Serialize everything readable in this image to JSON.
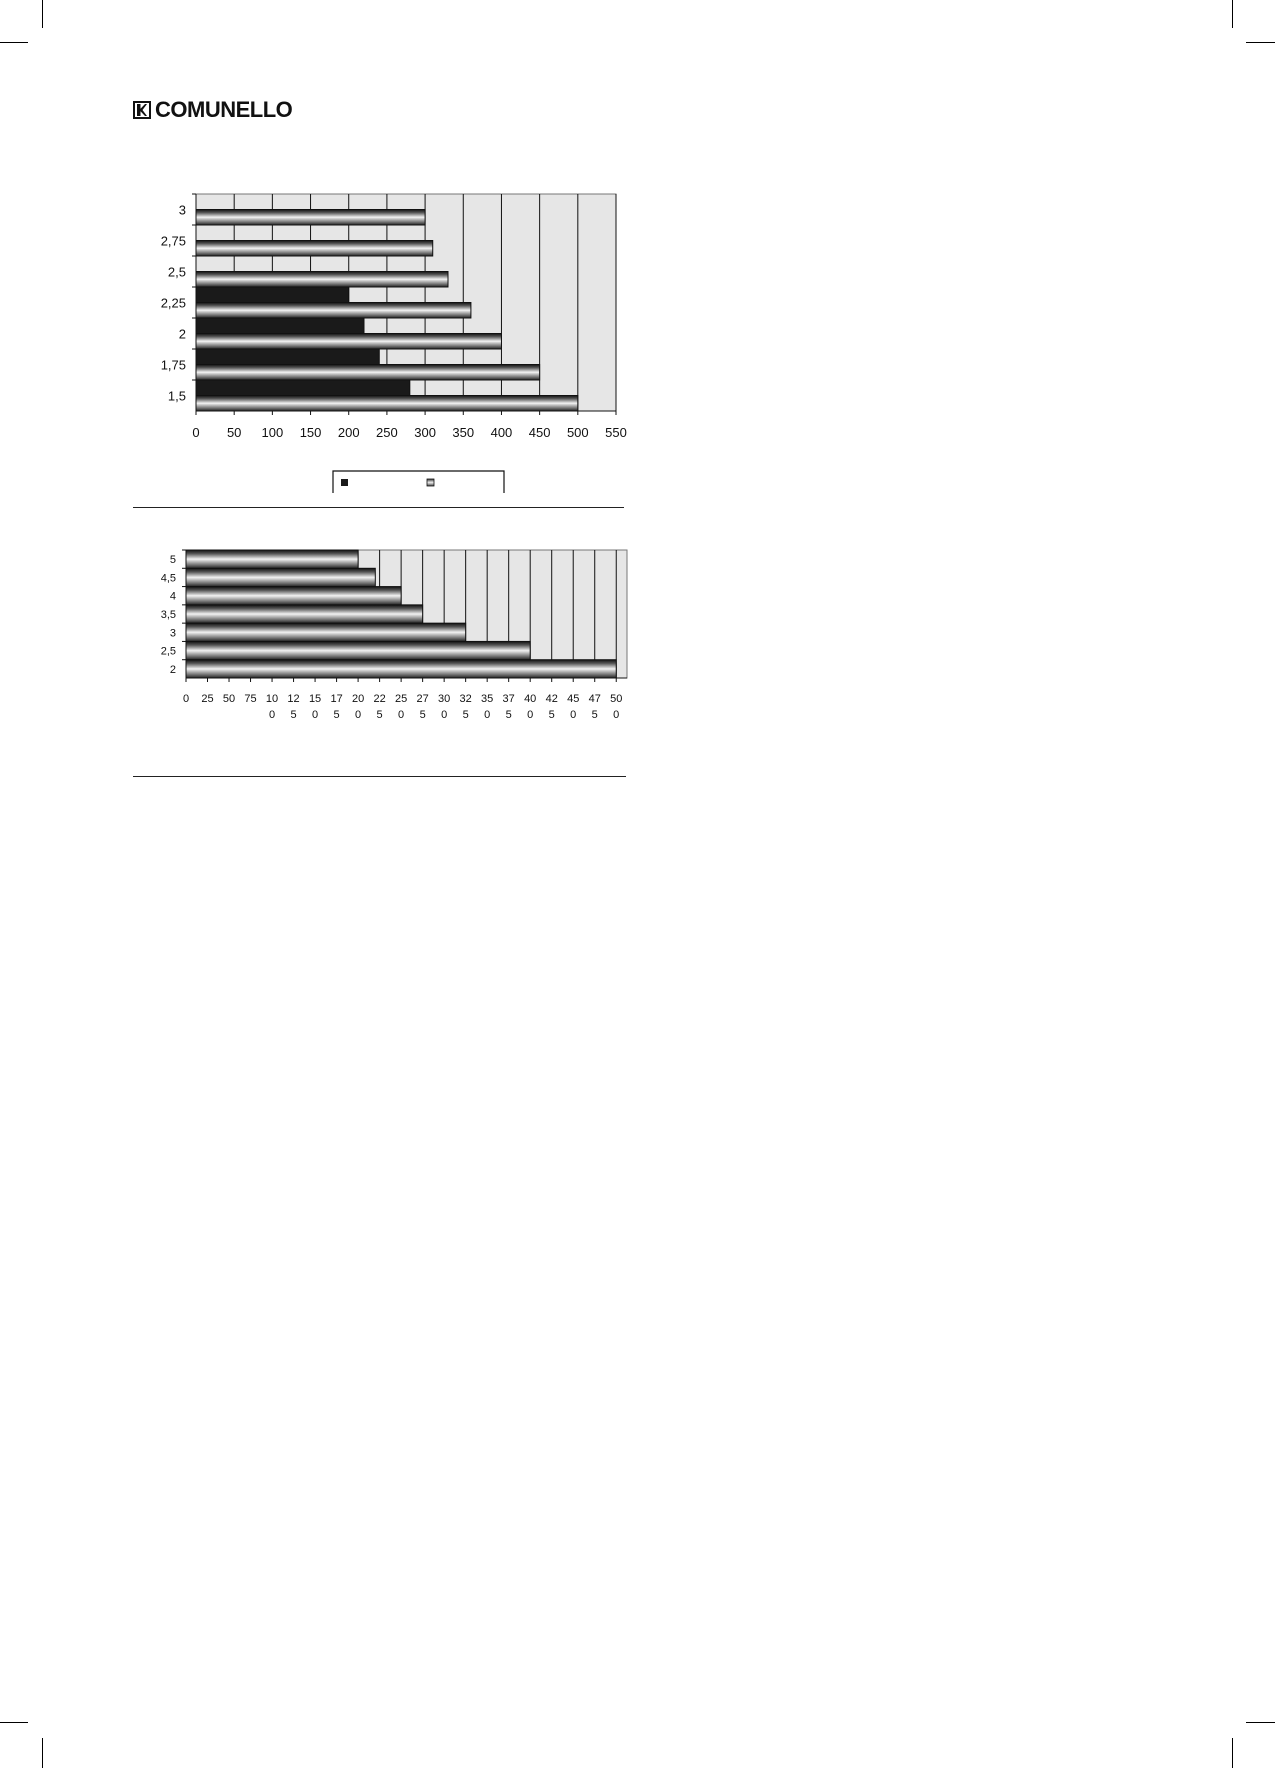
{
  "logo": {
    "text": "COMUNELLO"
  },
  "chart_data": [
    {
      "type": "bar",
      "orientation": "horizontal",
      "categories": [
        "1,5",
        "1,75",
        "2",
        "2,25",
        "2,5",
        "2,75",
        "3"
      ],
      "series": [
        {
          "values": [
            280,
            240,
            220,
            200,
            null,
            null,
            null
          ],
          "color": "#1a1a1a",
          "style": "solid"
        },
        {
          "values": [
            500,
            450,
            400,
            360,
            330,
            310,
            300
          ],
          "color": "#d8d8d8",
          "style": "gradient"
        }
      ],
      "xlim": [
        0,
        550
      ],
      "xticks": [
        "0",
        "50",
        "100",
        "150",
        "200",
        "250",
        "300",
        "350",
        "400",
        "450",
        "500",
        "550"
      ],
      "grid": true,
      "background": "#e6e6e6",
      "legend": "bottom"
    },
    {
      "type": "bar",
      "orientation": "horizontal",
      "categories": [
        "2",
        "2,5",
        "3",
        "3,5",
        "4",
        "4,5",
        "5"
      ],
      "series": [
        {
          "values": [
            500,
            400,
            325,
            275,
            250,
            220,
            200
          ],
          "color": "#d8d8d8",
          "style": "gradient"
        }
      ],
      "xlim": [
        0,
        512.5
      ],
      "xticks": [
        "0",
        "25",
        "50",
        "75",
        "100",
        "125",
        "150",
        "175",
        "200",
        "225",
        "250",
        "275",
        "300",
        "325",
        "350",
        "375",
        "400",
        "425",
        "450",
        "475",
        "500"
      ],
      "grid": true,
      "background": "#e6e6e6"
    }
  ]
}
